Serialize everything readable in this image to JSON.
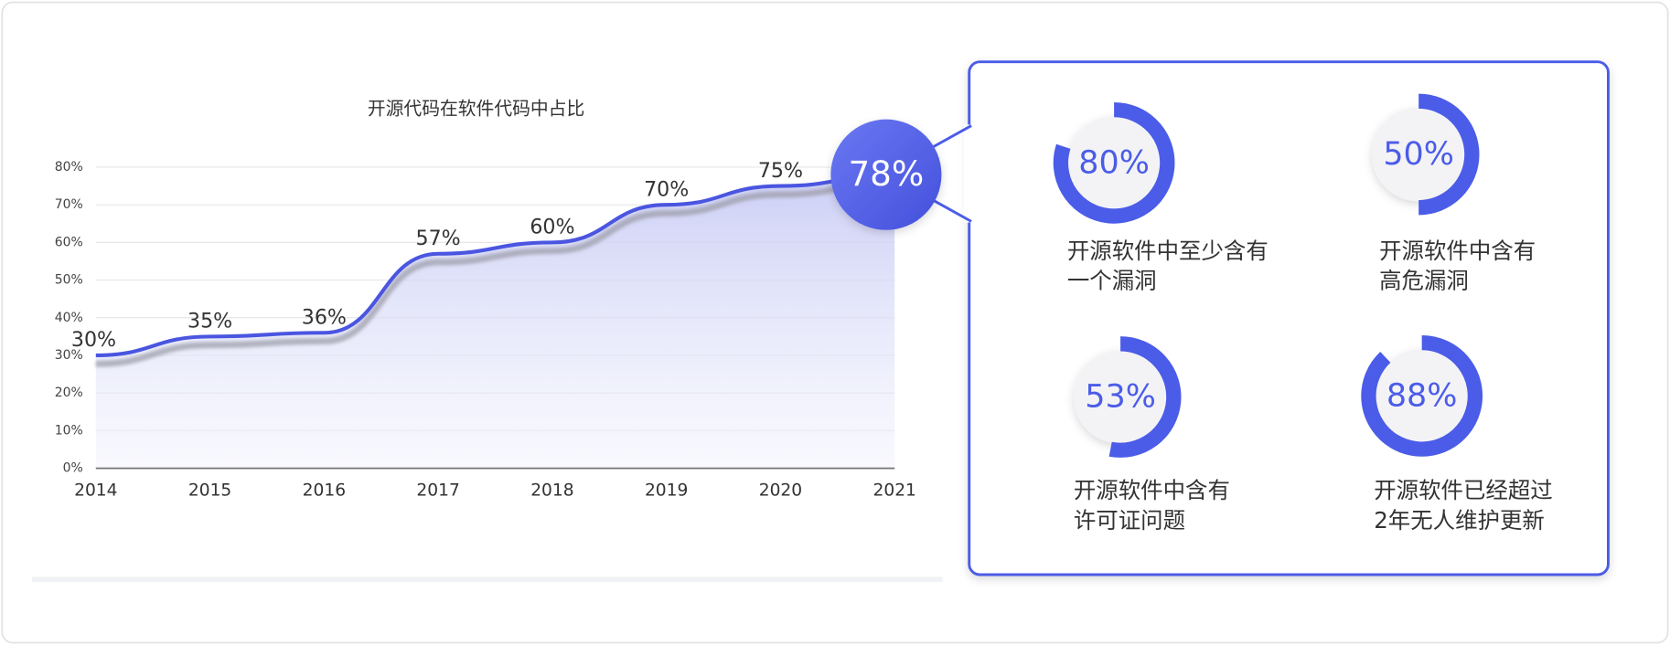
{
  "chart_data": [
    {
      "type": "line",
      "title": "开源代码在软件代码中占比",
      "categories": [
        "2014",
        "2015",
        "2016",
        "2017",
        "2018",
        "2019",
        "2020",
        "2021"
      ],
      "values": [
        30,
        35,
        36,
        57,
        60,
        70,
        75,
        78
      ],
      "value_labels": [
        "30%",
        "35%",
        "36%",
        "57%",
        "60%",
        "70%",
        "75%",
        "78%"
      ],
      "color": "#4a55e0",
      "ylim": [
        0,
        80
      ],
      "yticks": [
        {
          "value": 0,
          "label": "0%"
        },
        {
          "value": 10,
          "label": "10%"
        },
        {
          "value": 20,
          "label": "20%"
        },
        {
          "value": 30,
          "label": "30%"
        },
        {
          "value": 40,
          "label": "40%"
        },
        {
          "value": 50,
          "label": "50%"
        },
        {
          "value": 60,
          "label": "60%"
        },
        {
          "value": 70,
          "label": "70%"
        },
        {
          "value": 80,
          "label": "80%"
        }
      ],
      "grid": true
    },
    {
      "type": "donut",
      "values": [
        80
      ],
      "value_labels": [
        "80%"
      ],
      "color": "#4b5ce8",
      "caption": [
        "开源软件中至少含有",
        "一个漏洞"
      ]
    },
    {
      "type": "donut",
      "values": [
        50
      ],
      "value_labels": [
        "50%"
      ],
      "color": "#4b5ce8",
      "caption": [
        "开源软件中含有",
        "高危漏洞"
      ]
    },
    {
      "type": "donut",
      "values": [
        53
      ],
      "value_labels": [
        "53%"
      ],
      "color": "#4b5ce8",
      "caption": [
        "开源软件中含有",
        "许可证问题"
      ]
    },
    {
      "type": "donut",
      "values": [
        88
      ],
      "value_labels": [
        "88%"
      ],
      "color": "#4b5ce8",
      "caption": [
        "开源软件已经超过",
        "2年无人维护更新"
      ]
    }
  ]
}
